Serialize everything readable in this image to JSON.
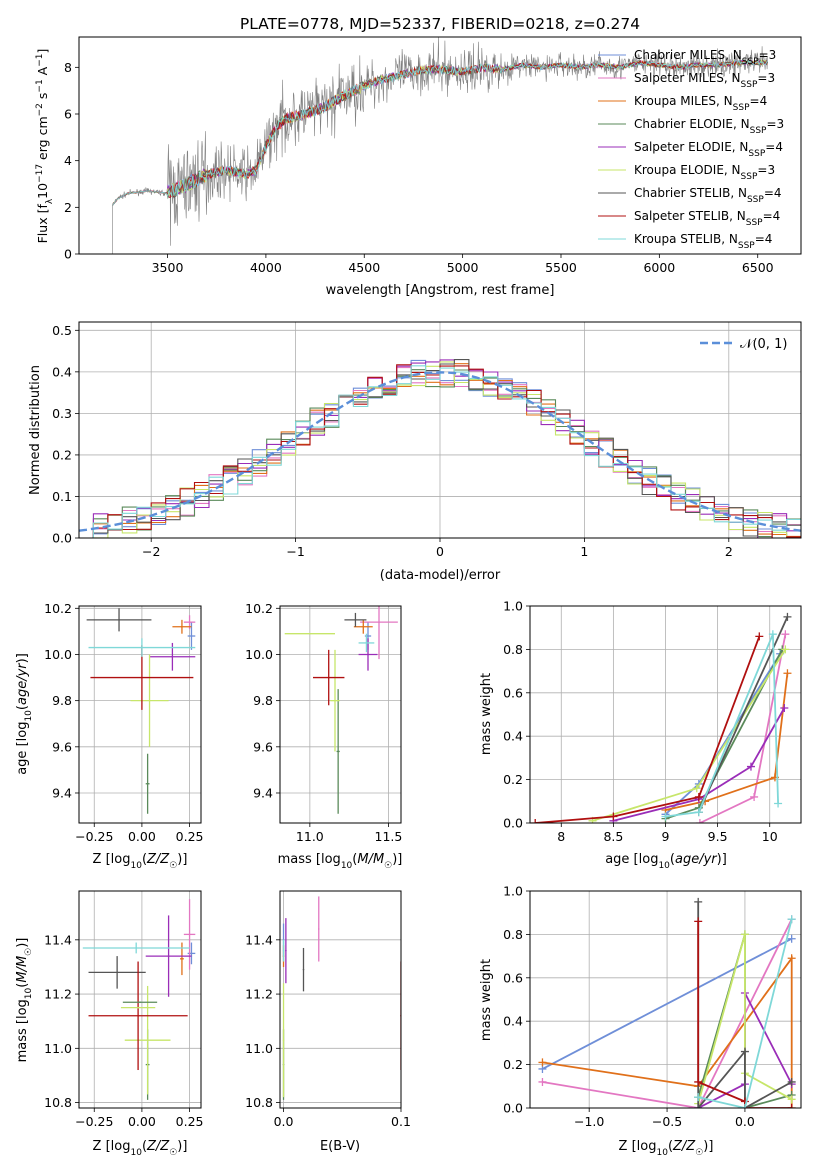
{
  "figure_title": "PLATE=0778, MJD=52337, FIBERID=0218, z=0.274",
  "colors": {
    "Chabrier MILES": "#6f8fd8",
    "Salpeter MILES": "#e377c2",
    "Kroupa MILES": "#e0701a",
    "Chabrier ELODIE": "#5a8a5a",
    "Salpeter ELODIE": "#9a2db8",
    "Kroupa ELODIE": "#c7e66a",
    "Chabrier STELIB": "#555555",
    "Salpeter STELIB": "#b01010",
    "Kroupa STELIB": "#7fd8d8",
    "normal": "#5b8fd9",
    "data": "#808080"
  },
  "chart_data": [
    {
      "id": "spectrum",
      "type": "line",
      "xlabel": "wavelength [Angstrom, rest frame]",
      "ylabel": "Flux [f_λ 10^-17 erg cm^-2 s^-1 A^-1]",
      "xlim": [
        3050,
        6720
      ],
      "ylim": [
        0,
        9.3
      ],
      "xticks": [
        3500,
        4000,
        4500,
        5000,
        5500,
        6000,
        6500
      ],
      "yticks": [
        0,
        2,
        4,
        6,
        8
      ],
      "legend_position": "top-right",
      "legend": [
        "Chabrier MILES, N_SSP=3",
        "Salpeter MILES, N_SSP=3",
        "Kroupa MILES, N_SSP=4",
        "Chabrier ELODIE, N_SSP=3",
        "Salpeter ELODIE, N_SSP=4",
        "Kroupa ELODIE, N_SSP=3",
        "Chabrier STELIB, N_SSP=4",
        "Salpeter STELIB, N_SSP=4",
        "Kroupa STELIB, N_SSP=4"
      ],
      "continuum": {
        "x": [
          3220,
          3250,
          3300,
          3400,
          3500,
          3550,
          3600,
          3650,
          3700,
          3750,
          3800,
          3850,
          3900,
          3950,
          4000,
          4050,
          4100,
          4200,
          4300,
          4400,
          4500,
          4600,
          4700,
          4800,
          4900,
          5000,
          5100,
          5200,
          5300,
          5400,
          5500,
          5600,
          5700,
          5800,
          5900,
          6000,
          6100,
          6200,
          6300,
          6400,
          6550
        ],
        "y": [
          2.1,
          2.4,
          2.6,
          2.7,
          2.6,
          2.8,
          3.0,
          3.2,
          3.4,
          3.5,
          3.6,
          3.5,
          3.4,
          3.6,
          4.6,
          5.4,
          5.8,
          6.0,
          6.3,
          6.8,
          7.2,
          7.5,
          7.7,
          7.9,
          7.9,
          7.8,
          8.0,
          7.9,
          8.1,
          8.0,
          8.1,
          8.0,
          8.1,
          8.0,
          8.2,
          8.1,
          8.0,
          8.1,
          8.1,
          8.2,
          8.2
        ]
      }
    },
    {
      "id": "residuals",
      "type": "histogram",
      "xlabel": "(data-model)/error",
      "ylabel": "Normed distribution",
      "xlim": [
        -2.5,
        2.5
      ],
      "ylim": [
        0,
        0.52
      ],
      "xticks": [
        -2,
        -1,
        0,
        1,
        2
      ],
      "yticks": [
        0.0,
        0.1,
        0.2,
        0.3,
        0.4,
        0.5
      ],
      "grid": true,
      "legend_position": "top-right",
      "legend": [
        "N(0, 1)"
      ],
      "bin_width": 0.1
    },
    {
      "id": "age_vs_Z",
      "type": "errorbar",
      "xlabel": "Z [log10(Z/Z_sun)]",
      "ylabel": "age  [log10(age/yr)]",
      "xlim": [
        -0.33,
        0.31
      ],
      "ylim": [
        9.27,
        10.21
      ],
      "xticks": [
        -0.25,
        0.0,
        0.25
      ],
      "xticklabels": [
        "−0.25",
        "0.00",
        "0.25"
      ],
      "yticks": [
        9.4,
        9.6,
        9.8,
        10.0,
        10.2
      ],
      "grid": true,
      "points": [
        {
          "s": "Chabrier MILES",
          "x": 0.26,
          "xe": 0.02,
          "y": 10.08,
          "ye": 0.06
        },
        {
          "s": "Salpeter MILES",
          "x": 0.25,
          "xe": 0.03,
          "y": 10.14,
          "ye": 0.03
        },
        {
          "s": "Kroupa MILES",
          "x": 0.21,
          "xe": 0.05,
          "y": 10.12,
          "ye": 0.03
        },
        {
          "s": "Chabrier ELODIE",
          "x": 0.03,
          "xe": 0.01,
          "y": 9.44,
          "ye": 0.13
        },
        {
          "s": "Salpeter ELODIE",
          "x": 0.16,
          "xe": 0.12,
          "y": 9.99,
          "ye": 0.06
        },
        {
          "s": "Kroupa ELODIE",
          "x": 0.04,
          "xe": 0.1,
          "y": 9.8,
          "ye": 0.2
        },
        {
          "s": "Chabrier STELIB",
          "x": -0.12,
          "xe": 0.17,
          "y": 10.15,
          "ye": 0.05
        },
        {
          "s": "Salpeter STELIB",
          "x": 0.0,
          "xe": 0.27,
          "y": 9.9,
          "ye": 0.14
        },
        {
          "s": "Kroupa STELIB",
          "x": 0.0,
          "xe": 0.28,
          "y": 10.03,
          "ye": 0.04
        }
      ]
    },
    {
      "id": "age_vs_mass",
      "type": "errorbar",
      "xlabel": "mass [log10(M/M_sun)]",
      "ylabel": "",
      "xlim": [
        10.81,
        11.58
      ],
      "ylim": [
        9.27,
        10.21
      ],
      "xticks": [
        11.0,
        11.5
      ],
      "xticklabels": [
        "11.0",
        "11.5"
      ],
      "yticks": [
        9.4,
        9.6,
        9.8,
        10.0,
        10.2
      ],
      "grid": true,
      "points": [
        {
          "s": "Chabrier MILES",
          "x": 11.37,
          "xe": 0.02,
          "y": 10.08,
          "ye": 0.06
        },
        {
          "s": "Salpeter MILES",
          "x": 11.44,
          "xe": 0.12,
          "y": 10.14,
          "ye": 0.16
        },
        {
          "s": "Kroupa MILES",
          "x": 11.34,
          "xe": 0.06,
          "y": 10.12,
          "ye": 0.03
        },
        {
          "s": "Chabrier ELODIE",
          "x": 11.18,
          "xe": 0.01,
          "y": 9.58,
          "ye": 0.27
        },
        {
          "s": "Salpeter ELODIE",
          "x": 11.37,
          "xe": 0.06,
          "y": 10.0,
          "ye": 0.07
        },
        {
          "s": "Kroupa ELODIE",
          "x": 11.16,
          "xe": 0.03,
          "y": 9.8,
          "ye": 0.22
        },
        {
          "s": "Chabrier STELIB",
          "x": 11.29,
          "xe": 0.07,
          "y": 10.15,
          "ye": 0.03
        },
        {
          "s": "Salpeter STELIB",
          "x": 11.12,
          "xe": 0.1,
          "y": 9.9,
          "ye": 0.12
        },
        {
          "s": "Kroupa STELIB",
          "x": 11.36,
          "xe": 0.05,
          "y": 10.05,
          "ye": 0.04
        },
        {
          "s": "Kroupa ELODIE",
          "x": 11.0,
          "xe": 0.16,
          "y": 10.09,
          "ye": 0.0
        }
      ]
    },
    {
      "id": "mass_weight_vs_age",
      "type": "line",
      "xlabel": "age  [log10(age/yr)]",
      "ylabel": "mass weight",
      "xlim": [
        7.7,
        10.3
      ],
      "ylim": [
        0,
        1
      ],
      "xticks": [
        8.0,
        8.5,
        9.0,
        9.5,
        10.0
      ],
      "yticks": [
        0.0,
        0.2,
        0.4,
        0.6,
        0.8,
        1.0
      ],
      "grid": true,
      "series": [
        {
          "name": "Chabrier MILES",
          "x": [
            9.0,
            9.32,
            10.1
          ],
          "y": [
            0.04,
            0.18,
            0.78
          ]
        },
        {
          "name": "Salpeter MILES",
          "x": [
            9.33,
            9.85,
            10.15
          ],
          "y": [
            0.0,
            0.12,
            0.87
          ]
        },
        {
          "name": "Kroupa MILES",
          "x": [
            9.0,
            9.38,
            10.05,
            10.17
          ],
          "y": [
            0.06,
            0.1,
            0.21,
            0.69
          ]
        },
        {
          "name": "Chabrier ELODIE",
          "x": [
            9.0,
            9.32,
            10.12
          ],
          "y": [
            0.02,
            0.07,
            0.8
          ]
        },
        {
          "name": "Salpeter ELODIE",
          "x": [
            8.5,
            9.32,
            9.82,
            10.14
          ],
          "y": [
            0.01,
            0.11,
            0.26,
            0.53
          ]
        },
        {
          "name": "Kroupa ELODIE",
          "x": [
            8.3,
            9.3,
            10.15
          ],
          "y": [
            0.01,
            0.16,
            0.8
          ]
        },
        {
          "name": "Chabrier STELIB",
          "x": [
            9.32,
            10.17
          ],
          "y": [
            0.05,
            0.95
          ]
        },
        {
          "name": "Salpeter STELIB",
          "x": [
            7.75,
            8.5,
            9.32,
            9.9
          ],
          "y": [
            0.0,
            0.03,
            0.12,
            0.86
          ]
        },
        {
          "name": "Kroupa STELIB",
          "x": [
            9.0,
            9.32,
            10.03,
            10.08
          ],
          "y": [
            0.03,
            0.05,
            0.87,
            0.09
          ]
        }
      ]
    },
    {
      "id": "mass_vs_Z",
      "type": "errorbar",
      "xlabel": "Z [log10(Z/Z_sun)]",
      "ylabel": "mass [log10(M/M_sun)]",
      "xlim": [
        -0.33,
        0.31
      ],
      "ylim": [
        10.78,
        11.58
      ],
      "xticks": [
        -0.25,
        0.0,
        0.25
      ],
      "xticklabels": [
        "−0.25",
        "0.00",
        "0.25"
      ],
      "yticks": [
        10.8,
        11.0,
        11.2,
        11.4
      ],
      "grid": true,
      "points": [
        {
          "s": "Chabrier MILES",
          "x": 0.26,
          "xe": 0.02,
          "y": 11.35,
          "ye": 0.04
        },
        {
          "s": "Salpeter MILES",
          "x": 0.25,
          "xe": 0.03,
          "y": 11.42,
          "ye": 0.13
        },
        {
          "s": "Kroupa MILES",
          "x": 0.21,
          "xe": 0.01,
          "y": 11.33,
          "ye": 0.06
        },
        {
          "s": "Chabrier ELODIE",
          "x": 0.03,
          "xe": 0.01,
          "y": 10.94,
          "ye": 0.13
        },
        {
          "s": "Salpeter ELODIE",
          "x": 0.14,
          "xe": 0.12,
          "y": 11.34,
          "ye": 0.15
        },
        {
          "s": "Kroupa ELODIE",
          "x": 0.03,
          "xe": 0.12,
          "y": 11.03,
          "ye": 0.2
        },
        {
          "s": "Chabrier STELIB",
          "x": -0.13,
          "xe": 0.15,
          "y": 11.28,
          "ye": 0.06
        },
        {
          "s": "Salpeter STELIB",
          "x": -0.02,
          "xe": 0.26,
          "y": 11.12,
          "ye": 0.2
        },
        {
          "s": "Kroupa STELIB",
          "x": -0.03,
          "xe": 0.28,
          "y": 11.37,
          "ye": 0.02
        },
        {
          "s": "Chabrier ELODIE",
          "x": -0.01,
          "xe": 0.09,
          "y": 11.17,
          "ye": 0.0
        },
        {
          "s": "Kroupa ELODIE",
          "x": -0.02,
          "xe": 0.09,
          "y": 11.15,
          "ye": 0.0
        }
      ]
    },
    {
      "id": "mass_vs_ebv",
      "type": "errorbar",
      "xlabel": "E(B-V)",
      "ylabel": "",
      "xlim": [
        -0.003,
        0.1
      ],
      "ylim": [
        10.78,
        11.58
      ],
      "xticks": [
        0.0,
        0.1
      ],
      "xticklabels": [
        "0.0",
        "0.1"
      ],
      "yticks": [
        10.8,
        11.0,
        11.2,
        11.4
      ],
      "grid": true,
      "points": [
        {
          "s": "Chabrier MILES",
          "x": 0.0,
          "xe": 0.0,
          "y": 11.4,
          "ye": 0.06
        },
        {
          "s": "Salpeter MILES",
          "x": 0.03,
          "xe": 0.0,
          "y": 11.44,
          "ye": 0.12
        },
        {
          "s": "Kroupa MILES",
          "x": 0.0,
          "xe": 0.0,
          "y": 11.34,
          "ye": 0.04
        },
        {
          "s": "Chabrier ELODIE",
          "x": 0.0,
          "xe": 0.0,
          "y": 10.94,
          "ye": 0.13
        },
        {
          "s": "Salpeter ELODIE",
          "x": 0.002,
          "xe": 0.0,
          "y": 11.36,
          "ye": 0.12
        },
        {
          "s": "Kroupa ELODIE",
          "x": 0.0,
          "xe": 0.0,
          "y": 11.03,
          "ye": 0.21
        },
        {
          "s": "Chabrier STELIB",
          "x": 0.017,
          "xe": 0.0,
          "y": 11.29,
          "ye": 0.08
        },
        {
          "s": "Salpeter STELIB",
          "x": 0.1,
          "xe": 0.0,
          "y": 11.12,
          "ye": 0.2
        },
        {
          "s": "Kroupa STELIB",
          "x": 0.0,
          "xe": 0.0,
          "y": 11.36,
          "ye": 0.04
        }
      ]
    },
    {
      "id": "mass_weight_vs_Z",
      "type": "line",
      "xlabel": "Z [log10(Z/Z_sun)]",
      "ylabel": "mass weight",
      "xlim": [
        -1.38,
        0.36
      ],
      "ylim": [
        0,
        1
      ],
      "xticks": [
        -1.0,
        -0.5,
        0.0
      ],
      "xticklabels": [
        "−1.0",
        "−0.5",
        "0.0"
      ],
      "yticks": [
        0.0,
        0.2,
        0.4,
        0.6,
        0.8,
        1.0
      ],
      "grid": true,
      "series": [
        {
          "name": "Chabrier MILES",
          "x": [
            -1.3,
            0.3
          ],
          "y": [
            0.18,
            0.78
          ]
        },
        {
          "name": "Salpeter MILES",
          "x": [
            -1.3,
            -0.3,
            0.3
          ],
          "y": [
            0.12,
            0.0,
            0.87
          ]
        },
        {
          "name": "Kroupa MILES",
          "x": [
            -1.3,
            -0.3,
            0.3,
            0.3
          ],
          "y": [
            0.21,
            0.1,
            0.69,
            0.0
          ]
        },
        {
          "name": "Chabrier ELODIE",
          "x": [
            -0.3,
            0.0,
            0.0,
            0.3
          ],
          "y": [
            0.05,
            0.8,
            0.0,
            0.06
          ]
        },
        {
          "name": "Salpeter ELODIE",
          "x": [
            -0.3,
            0.0,
            0.0,
            0.3
          ],
          "y": [
            0.0,
            0.11,
            0.53,
            0.11
          ]
        },
        {
          "name": "Kroupa ELODIE",
          "x": [
            -0.3,
            0.0,
            0.0,
            0.3
          ],
          "y": [
            0.02,
            0.8,
            0.16,
            0.04
          ]
        },
        {
          "name": "Chabrier STELIB",
          "x": [
            -0.3,
            -0.3,
            0.0,
            0.0,
            0.3
          ],
          "y": [
            0.95,
            0.0,
            0.26,
            0.0,
            0.12
          ]
        },
        {
          "name": "Salpeter STELIB",
          "x": [
            -0.3,
            -0.3,
            0.0,
            0.0,
            0.3
          ],
          "y": [
            0.86,
            0.12,
            0.03,
            0.0,
            0.0
          ]
        },
        {
          "name": "Kroupa STELIB",
          "x": [
            -0.3,
            0.0,
            0.3
          ],
          "y": [
            0.05,
            0.0,
            0.87
          ]
        }
      ]
    }
  ]
}
